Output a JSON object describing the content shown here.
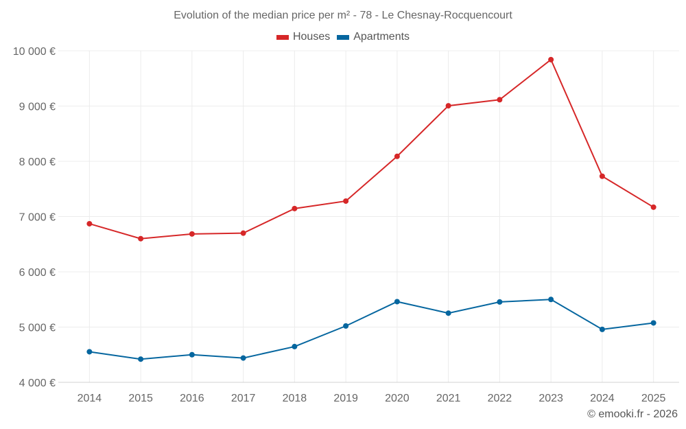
{
  "chart_data": {
    "type": "line",
    "title": "Evolution of the median price per m² - 78 - Le Chesnay-Rocquencourt",
    "xlabel": "",
    "ylabel": "",
    "categories": [
      "2014",
      "2015",
      "2016",
      "2017",
      "2018",
      "2019",
      "2020",
      "2021",
      "2022",
      "2023",
      "2024",
      "2025"
    ],
    "ylim": [
      4000,
      10000
    ],
    "yticks": [
      4000,
      5000,
      6000,
      7000,
      8000,
      9000,
      10000
    ],
    "ytick_labels": [
      "4 000 €",
      "5 000 €",
      "6 000 €",
      "7 000 €",
      "8 000 €",
      "9 000 €",
      "10 000 €"
    ],
    "grid": true,
    "legend_position": "top-center",
    "series": [
      {
        "name": "Houses",
        "color": "#d62728",
        "values": [
          6870,
          6600,
          6685,
          6700,
          7145,
          7280,
          8090,
          9005,
          9115,
          9840,
          7730,
          7170
        ]
      },
      {
        "name": "Apartments",
        "color": "#05669f",
        "values": [
          4553,
          4420,
          4500,
          4440,
          4647,
          5020,
          5460,
          5252,
          5455,
          5500,
          4958,
          5075
        ]
      }
    ]
  },
  "credit": "© emooki.fr - 2026"
}
